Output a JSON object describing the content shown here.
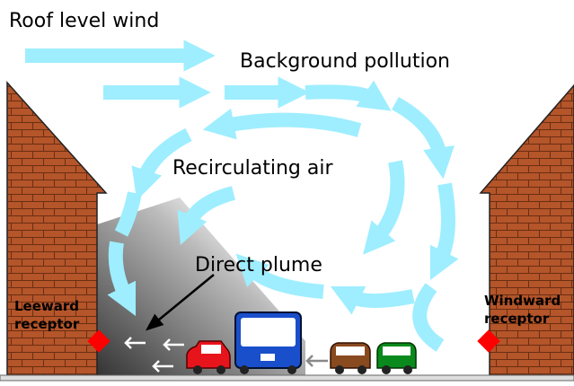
{
  "labels": {
    "roof_wind": "Roof level wind",
    "background": "Background pollution",
    "recirculating": "Recirculating air",
    "plume": "Direct plume"
  },
  "receptors": [
    {
      "lines": [
        "Leeward",
        "receptor"
      ]
    },
    {
      "lines": [
        "Windward",
        "receptor"
      ]
    }
  ]
}
